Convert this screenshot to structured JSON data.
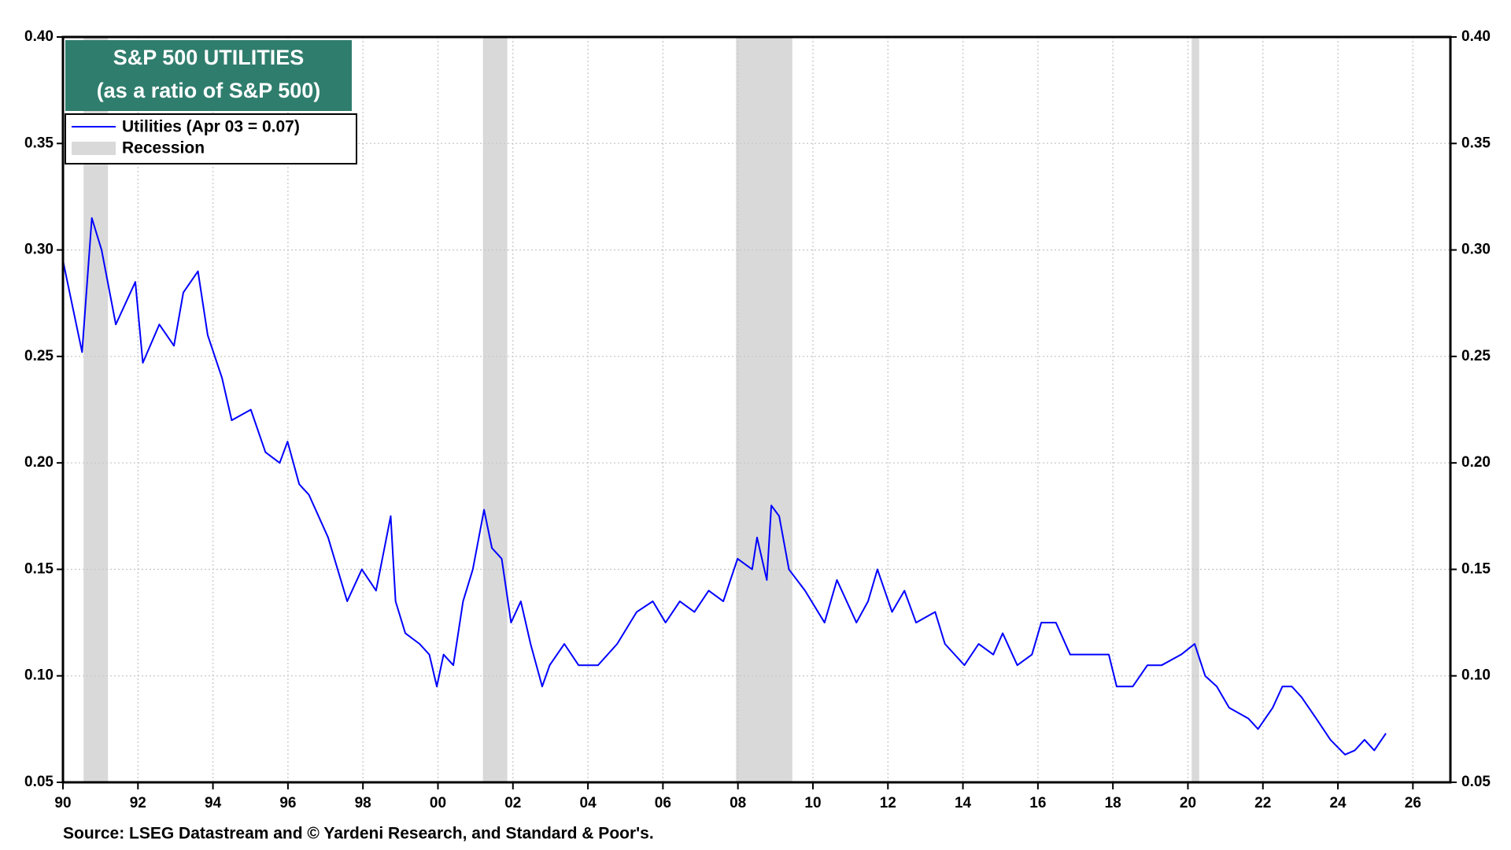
{
  "chart_data": {
    "type": "line",
    "title": "S&P 500 UTILITIES",
    "subtitle": "(as a ratio of S&P 500)",
    "source": "Source: LSEG Datastream and © Yardeni Research, and Standard & Poor's.",
    "xlim": [
      1990,
      2027
    ],
    "ylim": [
      0.05,
      0.4
    ],
    "yticks": [
      0.05,
      {
        "value": 0.1,
        "label": "0.10"
      },
      0.15,
      {
        "value": 0.2,
        "label": "0.20"
      },
      0.25,
      {
        "value": 0.3,
        "label": "0.30"
      },
      0.35,
      {
        "value": 0.4,
        "label": "0.40"
      }
    ],
    "xticks": [
      {
        "value": 1990,
        "label": "90"
      },
      {
        "value": 1992,
        "label": "92"
      },
      {
        "value": 1994,
        "label": "94"
      },
      {
        "value": 1996,
        "label": "96"
      },
      {
        "value": 1998,
        "label": "98"
      },
      {
        "value": 2000,
        "label": "00"
      },
      {
        "value": 2002,
        "label": "02"
      },
      {
        "value": 2004,
        "label": "04"
      },
      {
        "value": 2006,
        "label": "06"
      },
      {
        "value": 2008,
        "label": "08"
      },
      {
        "value": 2010,
        "label": "10"
      },
      {
        "value": 2012,
        "label": "12"
      },
      {
        "value": 2014,
        "label": "14"
      },
      {
        "value": 2016,
        "label": "16"
      },
      {
        "value": 2018,
        "label": "18"
      },
      {
        "value": 2020,
        "label": "20"
      },
      {
        "value": 2022,
        "label": "22"
      },
      {
        "value": 2024,
        "label": "24"
      },
      {
        "value": 2026,
        "label": "26"
      }
    ],
    "grid": true,
    "recession_name": "Recession",
    "recession_color": "#d9d9d9",
    "recessions": [
      {
        "start": 1990.55,
        "end": 1991.2
      },
      {
        "start": 2001.2,
        "end": 2001.85
      },
      {
        "start": 2007.95,
        "end": 2009.45
      },
      {
        "start": 2020.1,
        "end": 2020.3
      }
    ],
    "series": [
      {
        "name": "Utilities (Apr 03 = 0.07)",
        "color": "#0000ff",
        "x": [
          1990.0,
          1990.51,
          1990.77,
          1991.03,
          1991.41,
          1991.93,
          1992.13,
          1992.57,
          1992.96,
          1993.21,
          1993.6,
          1993.86,
          1994.24,
          1994.5,
          1995.01,
          1995.4,
          1995.78,
          1995.99,
          1996.3,
          1996.56,
          1997.07,
          1997.58,
          1997.97,
          1998.35,
          1998.74,
          1998.87,
          1999.13,
          1999.51,
          1999.77,
          1999.97,
          2000.15,
          2000.41,
          2000.67,
          2000.93,
          2001.23,
          2001.44,
          2001.7,
          2001.95,
          2002.21,
          2002.47,
          2002.78,
          2002.98,
          2003.37,
          2003.75,
          2004.27,
          2004.78,
          2005.3,
          2005.73,
          2006.07,
          2006.45,
          2006.84,
          2007.22,
          2007.61,
          2007.99,
          2008.38,
          2008.51,
          2008.77,
          2008.89,
          2009.1,
          2009.36,
          2009.79,
          2010.31,
          2010.64,
          2011.16,
          2011.47,
          2011.72,
          2012.11,
          2012.44,
          2012.75,
          2013.26,
          2013.52,
          2014.04,
          2014.42,
          2014.81,
          2015.06,
          2015.45,
          2015.84,
          2016.09,
          2016.48,
          2016.86,
          2017.38,
          2017.89,
          2018.1,
          2018.53,
          2018.92,
          2019.3,
          2019.82,
          2020.18,
          2020.46,
          2020.77,
          2021.1,
          2021.61,
          2021.87,
          2022.26,
          2022.52,
          2022.77,
          2023.03,
          2023.42,
          2023.8,
          2024.19,
          2024.45,
          2024.71,
          2024.97,
          2025.28
        ],
        "values": [
          0.295,
          0.252,
          0.315,
          0.3,
          0.265,
          0.285,
          0.247,
          0.265,
          0.255,
          0.28,
          0.29,
          0.26,
          0.24,
          0.22,
          0.225,
          0.205,
          0.2,
          0.21,
          0.19,
          0.185,
          0.165,
          0.135,
          0.15,
          0.14,
          0.175,
          0.135,
          0.12,
          0.115,
          0.11,
          0.095,
          0.11,
          0.105,
          0.135,
          0.15,
          0.178,
          0.16,
          0.155,
          0.125,
          0.135,
          0.115,
          0.095,
          0.105,
          0.115,
          0.105,
          0.105,
          0.115,
          0.13,
          0.135,
          0.125,
          0.135,
          0.13,
          0.14,
          0.135,
          0.155,
          0.15,
          0.165,
          0.145,
          0.18,
          0.175,
          0.15,
          0.14,
          0.125,
          0.145,
          0.125,
          0.135,
          0.15,
          0.13,
          0.14,
          0.125,
          0.13,
          0.115,
          0.105,
          0.115,
          0.11,
          0.12,
          0.105,
          0.11,
          0.125,
          0.125,
          0.11,
          0.11,
          0.11,
          0.095,
          0.095,
          0.105,
          0.105,
          0.11,
          0.115,
          0.1,
          0.095,
          0.085,
          0.08,
          0.075,
          0.085,
          0.095,
          0.095,
          0.09,
          0.08,
          0.07,
          0.063,
          0.065,
          0.07,
          0.065,
          0.073
        ]
      }
    ]
  }
}
